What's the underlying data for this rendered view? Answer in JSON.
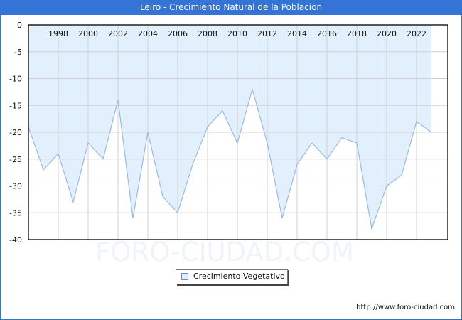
{
  "title": "Leiro - Crecimiento Natural de la Poblacion",
  "legend": {
    "label": "Crecimiento Vegetativo"
  },
  "footer": {
    "url": "http://www.foro-ciudad.com"
  },
  "watermark": "FORO-CIUDAD.COM",
  "colors": {
    "titlebar": "#3474d6",
    "fill": "#e2f0fd",
    "line": "#9ab9e8",
    "grid": "#d0d0d0"
  },
  "chart_data": {
    "type": "area",
    "title": "Leiro - Crecimiento Natural de la Poblacion",
    "xlabel": "",
    "ylabel": "",
    "x": [
      1996,
      1997,
      1998,
      1999,
      2000,
      2001,
      2002,
      2003,
      2004,
      2005,
      2006,
      2007,
      2008,
      2009,
      2010,
      2011,
      2012,
      2013,
      2014,
      2015,
      2016,
      2017,
      2018,
      2019,
      2020,
      2021,
      2022,
      2023
    ],
    "series": [
      {
        "name": "Crecimiento Vegetativo",
        "values": [
          -19,
          -27,
          -24,
          -33,
          -22,
          -25,
          -14,
          -36,
          -20,
          -32,
          -35,
          -26,
          -19,
          -16,
          -22,
          -12,
          -22,
          -36,
          -26,
          -22,
          -25,
          -21,
          -22,
          -38,
          -30,
          -28,
          -18,
          -20
        ]
      }
    ],
    "x_tick_labels": [
      "1998",
      "2000",
      "2002",
      "2004",
      "2006",
      "2008",
      "2010",
      "2012",
      "2014",
      "2016",
      "2018",
      "2020",
      "2022"
    ],
    "y_tick_labels": [
      "0",
      "-5",
      "-10",
      "-15",
      "-20",
      "-25",
      "-30",
      "-35",
      "-40"
    ],
    "ylim": [
      -40,
      0
    ],
    "grid": true,
    "legend_position": "bottom"
  }
}
